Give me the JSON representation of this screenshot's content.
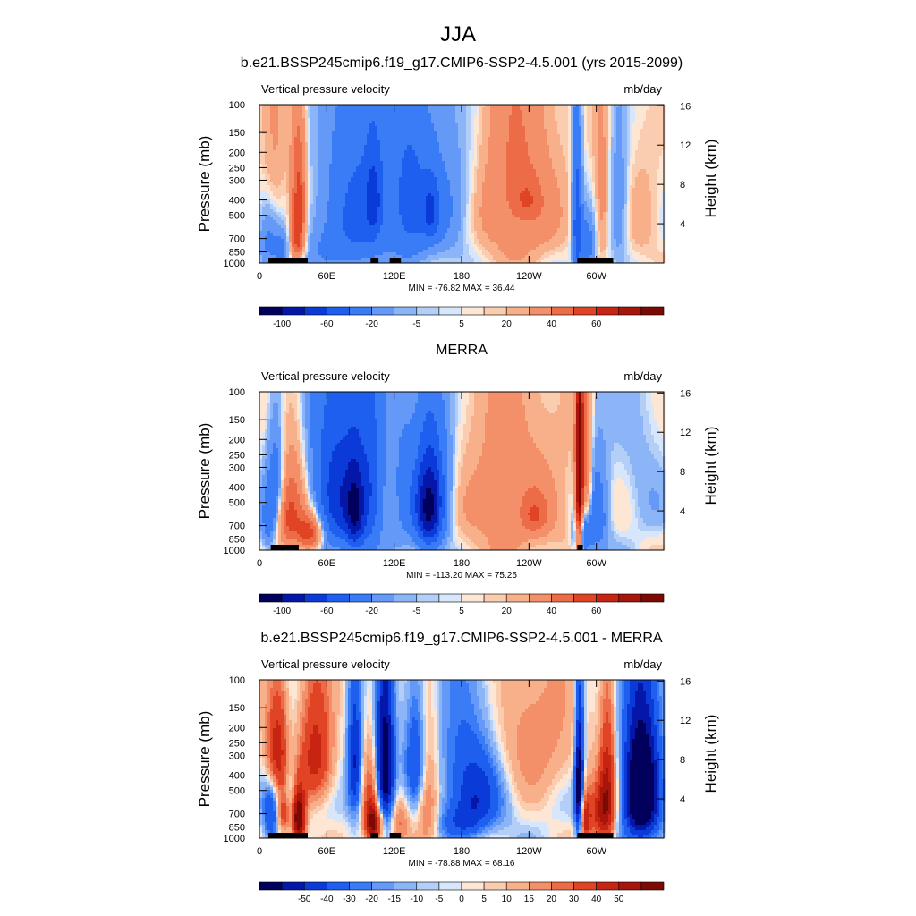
{
  "figure": {
    "season": "JJA",
    "panel_titles": [
      "b.e21.BSSP245cmip6.f19_g17.CMIP6-SSP2-4.5.001 (yrs 2015-2099)",
      "MERRA",
      "b.e21.BSSP245cmip6.f19_g17.CMIP6-SSP2-4.5.001 - MERRA"
    ]
  },
  "chart_data": [
    {
      "type": "heatmap",
      "title": "b.e21.BSSP245cmip6.f19_g17.CMIP6-SSP2-4.5.001 (yrs 2015-2099)",
      "left_label": "Vertical pressure velocity",
      "units": "mb/day",
      "ylabel": "Pressure (mb)",
      "y2label": "Height (km)",
      "x_ticks": [
        "0",
        "60E",
        "120E",
        "180",
        "120W",
        "60W"
      ],
      "x_tick_lons": [
        0,
        60,
        120,
        180,
        240,
        300
      ],
      "xlim": [
        0,
        360
      ],
      "pressure_ticks": [
        "100",
        "150",
        "200",
        "250",
        "300",
        "400",
        "500",
        "700",
        "850",
        "1000"
      ],
      "pressure_values": [
        100,
        150,
        200,
        250,
        300,
        400,
        500,
        700,
        850,
        1000
      ],
      "height_ticks": [
        "4",
        "8",
        "12",
        "16"
      ],
      "height_values": [
        4,
        8,
        12,
        16
      ],
      "stats": "MIN = -76.82  MAX =  36.44",
      "min": -76.82,
      "max": 36.44,
      "colorbar_levels": [
        -120,
        -100,
        -80,
        -60,
        -40,
        -20,
        -10,
        -5,
        -2.5,
        0,
        2.5,
        5,
        10,
        20,
        30,
        40,
        50,
        60,
        70
      ],
      "colorbar_labels": [
        "-100",
        "-60",
        "-20",
        "-5",
        "5",
        "20",
        "40",
        "60"
      ],
      "features": [
        {
          "lon": 12,
          "p": 380,
          "wl": 8,
          "wp": 350,
          "v": 10
        },
        {
          "lon": 35,
          "p": 400,
          "wl": 5,
          "wp": 250,
          "v": 30
        },
        {
          "lon": 33,
          "p": 760,
          "wl": 6,
          "wp": 160,
          "v": 25
        },
        {
          "lon": 8,
          "p": 720,
          "wl": 6,
          "wp": 250,
          "v": -20
        },
        {
          "lon": 20,
          "p": 820,
          "wl": 5,
          "wp": 150,
          "v": -20
        },
        {
          "lon": 90,
          "p": 400,
          "wl": 22,
          "wp": 380,
          "v": -35
        },
        {
          "lon": 102,
          "p": 400,
          "wl": 5,
          "wp": 180,
          "v": -30
        },
        {
          "lon": 135,
          "p": 430,
          "wl": 12,
          "wp": 330,
          "v": -35
        },
        {
          "lon": 153,
          "p": 470,
          "wl": 5,
          "wp": 150,
          "v": -30
        },
        {
          "lon": 165,
          "p": 430,
          "wl": 16,
          "wp": 330,
          "v": -18
        },
        {
          "lon": 230,
          "p": 380,
          "wl": 26,
          "wp": 380,
          "v": 18
        },
        {
          "lon": 238,
          "p": 400,
          "wl": 8,
          "wp": 80,
          "v": 10
        },
        {
          "lon": 283,
          "p": 560,
          "wl": 3,
          "wp": 420,
          "v": -45
        },
        {
          "lon": 292,
          "p": 780,
          "wl": 5,
          "wp": 220,
          "v": -25
        },
        {
          "lon": 305,
          "p": 420,
          "wl": 5,
          "wp": 300,
          "v": 12
        },
        {
          "lon": 320,
          "p": 470,
          "wl": 6,
          "wp": 330,
          "v": -15
        },
        {
          "lon": 340,
          "p": 500,
          "wl": 12,
          "wp": 400,
          "v": 5
        },
        {
          "lon": 60,
          "p": 800,
          "wl": 30,
          "wp": 250,
          "v": -12
        }
      ],
      "land": [
        [
          8,
          43
        ],
        [
          99,
          106
        ],
        [
          116,
          126
        ],
        [
          283,
          315
        ]
      ]
    },
    {
      "type": "heatmap",
      "title": "MERRA",
      "left_label": "Vertical pressure velocity",
      "units": "mb/day",
      "ylabel": "Pressure (mb)",
      "y2label": "Height (km)",
      "x_ticks": [
        "0",
        "60E",
        "120E",
        "180",
        "120W",
        "60W"
      ],
      "x_tick_lons": [
        0,
        60,
        120,
        180,
        240,
        300
      ],
      "xlim": [
        0,
        360
      ],
      "pressure_ticks": [
        "100",
        "150",
        "200",
        "250",
        "300",
        "400",
        "500",
        "700",
        "850",
        "1000"
      ],
      "pressure_values": [
        100,
        150,
        200,
        250,
        300,
        400,
        500,
        700,
        850,
        1000
      ],
      "height_ticks": [
        "4",
        "8",
        "12",
        "16"
      ],
      "height_values": [
        4,
        8,
        12,
        16
      ],
      "stats": "MIN = -113.20  MAX =  75.25",
      "min": -113.2,
      "max": 75.25,
      "colorbar_levels": [
        -120,
        -100,
        -80,
        -60,
        -40,
        -20,
        -10,
        -5,
        -2.5,
        0,
        2.5,
        5,
        10,
        20,
        30,
        40,
        50,
        60,
        70
      ],
      "colorbar_labels": [
        "-100",
        "-60",
        "-20",
        "-5",
        "5",
        "20",
        "40",
        "60"
      ],
      "features": [
        {
          "lon": 15,
          "p": 330,
          "wl": 5,
          "wp": 200,
          "v": -12
        },
        {
          "lon": 30,
          "p": 520,
          "wl": 8,
          "wp": 280,
          "v": 15
        },
        {
          "lon": 45,
          "p": 780,
          "wl": 8,
          "wp": 150,
          "v": 30
        },
        {
          "lon": 25,
          "p": 650,
          "wl": 6,
          "wp": 200,
          "v": 12
        },
        {
          "lon": 8,
          "p": 700,
          "wl": 5,
          "wp": 250,
          "v": -10
        },
        {
          "lon": 70,
          "p": 420,
          "wl": 16,
          "wp": 380,
          "v": -30
        },
        {
          "lon": 85,
          "p": 600,
          "wl": 6,
          "wp": 300,
          "v": -25
        },
        {
          "lon": 100,
          "p": 430,
          "wl": 8,
          "wp": 350,
          "v": -20
        },
        {
          "lon": 130,
          "p": 450,
          "wl": 10,
          "wp": 330,
          "v": -12
        },
        {
          "lon": 150,
          "p": 550,
          "wl": 8,
          "wp": 300,
          "v": -35
        },
        {
          "lon": 160,
          "p": 450,
          "wl": 10,
          "wp": 300,
          "v": -15
        },
        {
          "lon": 225,
          "p": 500,
          "wl": 35,
          "wp": 430,
          "v": 12
        },
        {
          "lon": 245,
          "p": 600,
          "wl": 8,
          "wp": 120,
          "v": 12
        },
        {
          "lon": 285,
          "p": 450,
          "wl": 2.5,
          "wp": 420,
          "v": 60
        },
        {
          "lon": 292,
          "p": 400,
          "wl": 3,
          "wp": 300,
          "v": 20
        },
        {
          "lon": 287,
          "p": 800,
          "wl": 5,
          "wp": 200,
          "v": -30
        },
        {
          "lon": 300,
          "p": 600,
          "wl": 8,
          "wp": 300,
          "v": -15
        },
        {
          "lon": 340,
          "p": 300,
          "wl": 15,
          "wp": 300,
          "v": -3
        }
      ],
      "land": [
        [
          10,
          35
        ],
        [
          283,
          288
        ]
      ]
    },
    {
      "type": "heatmap",
      "title": "b.e21.BSSP245cmip6.f19_g17.CMIP6-SSP2-4.5.001 - MERRA",
      "left_label": "Vertical pressure velocity",
      "units": "mb/day",
      "ylabel": "Pressure (mb)",
      "y2label": "Height (km)",
      "x_ticks": [
        "0",
        "60E",
        "120E",
        "180",
        "120W",
        "60W"
      ],
      "x_tick_lons": [
        0,
        60,
        120,
        180,
        240,
        300
      ],
      "xlim": [
        0,
        360
      ],
      "pressure_ticks": [
        "100",
        "150",
        "200",
        "250",
        "300",
        "400",
        "500",
        "700",
        "850",
        "1000"
      ],
      "pressure_values": [
        100,
        150,
        200,
        250,
        300,
        400,
        500,
        700,
        850,
        1000
      ],
      "height_ticks": [
        "4",
        "8",
        "12",
        "16"
      ],
      "height_values": [
        4,
        8,
        12,
        16
      ],
      "stats": "MIN = -78.88  MAX =  68.16",
      "min": -78.88,
      "max": 68.16,
      "colorbar_levels": [
        -60,
        -50,
        -40,
        -30,
        -20,
        -15,
        -10,
        -5,
        -2.5,
        0,
        2.5,
        5,
        10,
        15,
        20,
        30,
        40,
        50,
        60
      ],
      "colorbar_labels": [
        "-50",
        "-40",
        "-30",
        "-20",
        "-15",
        "-10",
        "-5",
        "0",
        "5",
        "10",
        "15",
        "20",
        "30",
        "40",
        "50"
      ],
      "features": [
        {
          "lon": 15,
          "p": 280,
          "wl": 7,
          "wp": 150,
          "v": 30
        },
        {
          "lon": 50,
          "p": 300,
          "wl": 10,
          "wp": 180,
          "v": 25
        },
        {
          "lon": 35,
          "p": 750,
          "wl": 4,
          "wp": 200,
          "v": 50
        },
        {
          "lon": 22,
          "p": 700,
          "wl": 4,
          "wp": 150,
          "v": 20
        },
        {
          "lon": 10,
          "p": 650,
          "wl": 5,
          "wp": 300,
          "v": -15
        },
        {
          "lon": 28,
          "p": 550,
          "wl": 5,
          "wp": 200,
          "v": -10
        },
        {
          "lon": 85,
          "p": 350,
          "wl": 5,
          "wp": 250,
          "v": -20
        },
        {
          "lon": 112,
          "p": 380,
          "wl": 6,
          "wp": 300,
          "v": -30
        },
        {
          "lon": 98,
          "p": 600,
          "wl": 5,
          "wp": 300,
          "v": 15
        },
        {
          "lon": 102,
          "p": 820,
          "wl": 5,
          "wp": 150,
          "v": 35
        },
        {
          "lon": 125,
          "p": 750,
          "wl": 6,
          "wp": 200,
          "v": 12
        },
        {
          "lon": 150,
          "p": 550,
          "wl": 6,
          "wp": 350,
          "v": 15
        },
        {
          "lon": 140,
          "p": 300,
          "wl": 8,
          "wp": 200,
          "v": -15
        },
        {
          "lon": 190,
          "p": 470,
          "wl": 20,
          "wp": 300,
          "v": -18
        },
        {
          "lon": 180,
          "p": 800,
          "wl": 15,
          "wp": 150,
          "v": -8
        },
        {
          "lon": 240,
          "p": 220,
          "wl": 30,
          "wp": 200,
          "v": 10
        },
        {
          "lon": 285,
          "p": 500,
          "wl": 3,
          "wp": 350,
          "v": -35
        },
        {
          "lon": 290,
          "p": 750,
          "wl": 4,
          "wp": 200,
          "v": 30
        },
        {
          "lon": 310,
          "p": 550,
          "wl": 5,
          "wp": 350,
          "v": 30
        },
        {
          "lon": 302,
          "p": 700,
          "wl": 5,
          "wp": 200,
          "v": 20
        },
        {
          "lon": 340,
          "p": 500,
          "wl": 12,
          "wp": 400,
          "v": -35
        }
      ],
      "land": [
        [
          8,
          43
        ],
        [
          99,
          106
        ],
        [
          116,
          126
        ],
        [
          283,
          315
        ]
      ]
    }
  ],
  "colors": {
    "palette": [
      "#02005d",
      "#0417a8",
      "#0a3ad8",
      "#1f5ff0",
      "#3a7cf5",
      "#6499f7",
      "#8cb5f7",
      "#b3cff8",
      "#d7e6fb",
      "#fde6d4",
      "#fbcdb0",
      "#f8b08b",
      "#f3906a",
      "#ec6c48",
      "#e04424",
      "#c72412",
      "#a8150b",
      "#7c0a04"
    ],
    "land": "#000000"
  }
}
